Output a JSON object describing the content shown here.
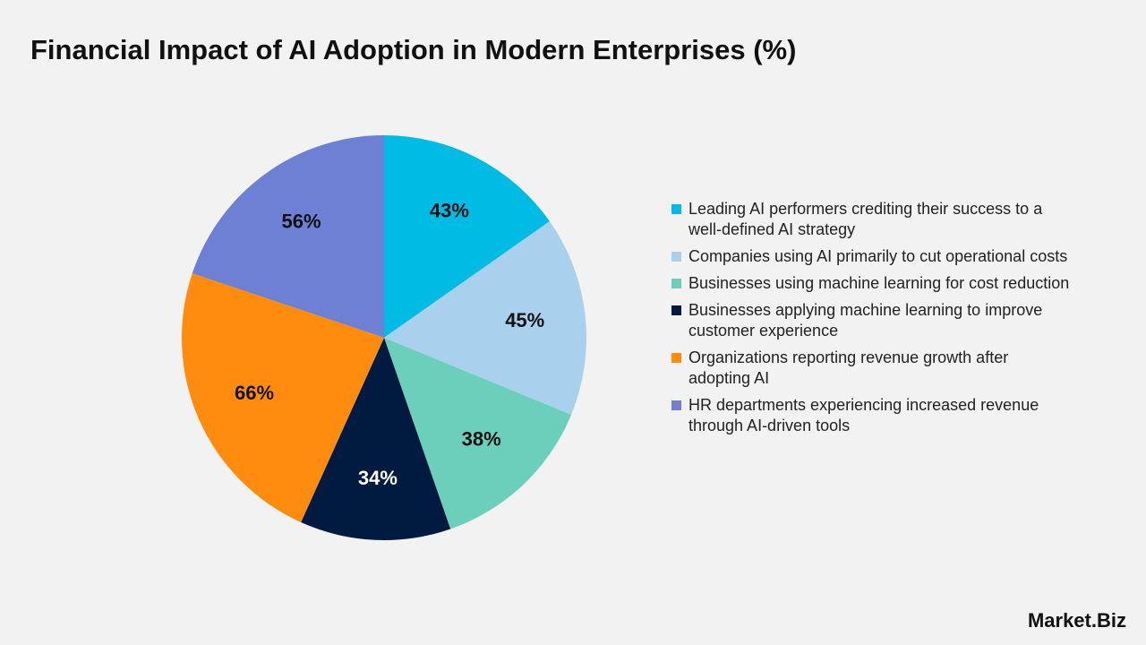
{
  "chart_data": {
    "type": "pie",
    "title": "Financial Impact of AI Adoption in Modern Enterprises (%)",
    "categories": [
      "Leading AI performers crediting their success to a well-defined AI strategy",
      "Companies using AI primarily to cut operational costs",
      "Businesses using machine learning for cost reduction",
      "Businesses applying machine learning to improve customer experience",
      "Organizations reporting revenue growth after adopting AI",
      "HR departments experiencing increased revenue through AI-driven tools"
    ],
    "values": [
      43,
      45,
      38,
      34,
      66,
      56
    ],
    "value_labels": [
      "43%",
      "45%",
      "38%",
      "34%",
      "66%",
      "56%"
    ],
    "colors": [
      "#00bce4",
      "#a9d0ec",
      "#6ccfbb",
      "#001a40",
      "#ff8c0f",
      "#6e80d4"
    ],
    "legend": "right"
  },
  "watermark": "Market.Biz"
}
